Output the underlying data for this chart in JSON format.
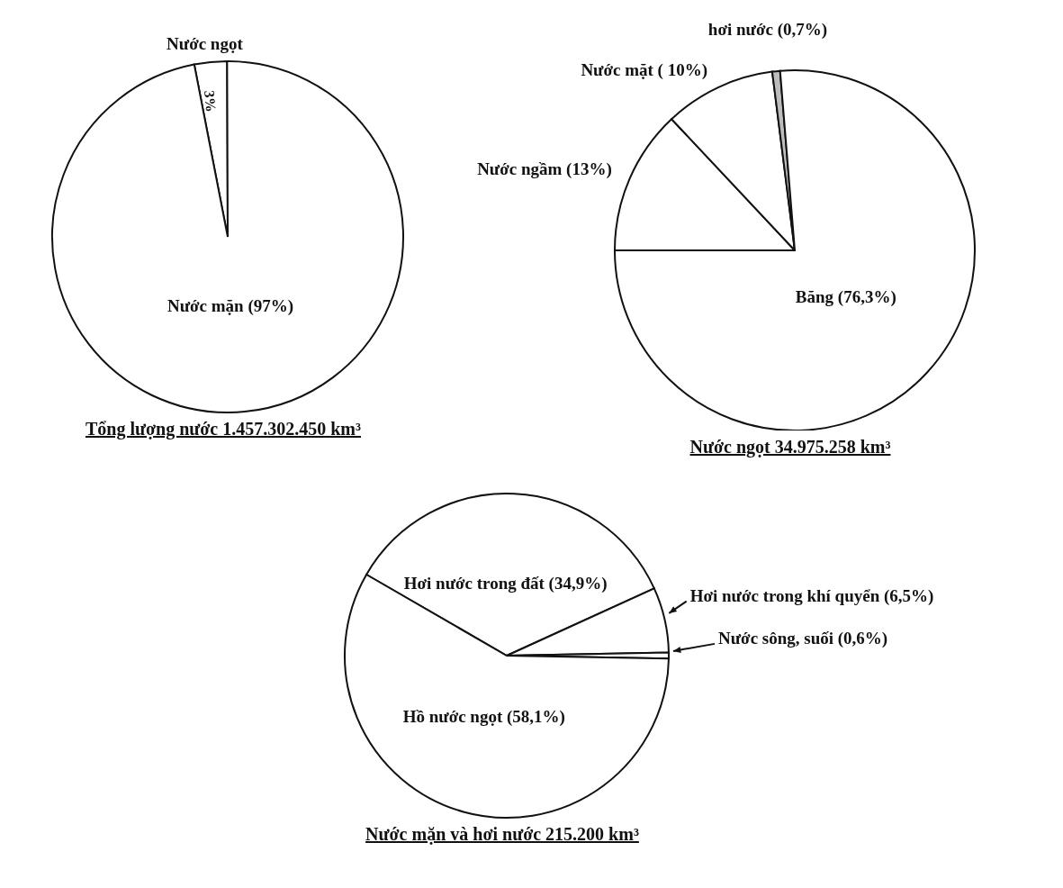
{
  "chart_data": [
    {
      "type": "pie",
      "title": "Tổng lượng nước 1.457.302.450 km³",
      "categories": [
        "Nước ngọt",
        "Nước mặn (97%)"
      ],
      "values": [
        3,
        97
      ],
      "colors": [
        "#ffffff",
        "#ffffff"
      ],
      "value_labels": [
        "3%",
        null
      ]
    },
    {
      "type": "pie",
      "title": "Nước ngọt 34.975.258 km³",
      "categories": [
        "Nước ngầm (13%)",
        "Nước mặt ( 10%)",
        "hơi nước (0,7%)",
        "Băng (76,3%)"
      ],
      "values": [
        13,
        10,
        0.7,
        76.3
      ],
      "colors": [
        "#ffffff",
        "#ffffff",
        "#bdbdbd",
        "#ffffff"
      ]
    },
    {
      "type": "pie",
      "title": "Nước mặn và hơi nước 215.200 km³",
      "categories": [
        "Hơi nước trong đất (34,9%)",
        "Hơi nước trong khí quyển (6,5%)",
        "Nước sông, suối (0,6%)",
        "Hồ nước ngọt (58,1%)"
      ],
      "values": [
        34.9,
        6.5,
        0.6,
        58.1
      ],
      "colors": [
        "#ffffff",
        "#ffffff",
        "#ffffff",
        "#ffffff"
      ]
    }
  ]
}
